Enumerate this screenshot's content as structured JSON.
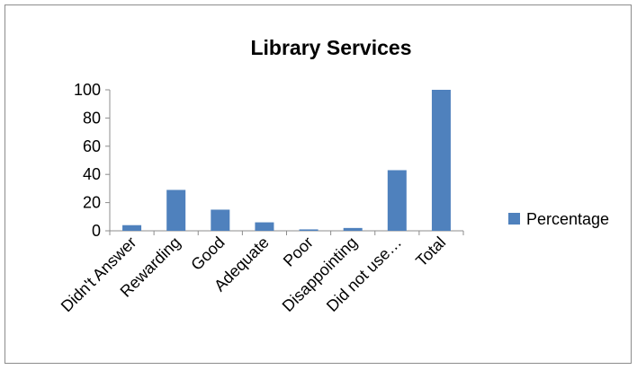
{
  "chart_data": {
    "type": "bar",
    "title": "Library Services",
    "xlabel": "",
    "ylabel": "",
    "categories": [
      "Didn't Answer",
      "Rewarding",
      "Good",
      "Adequate",
      "Poor",
      "Disappointing",
      "Did not use…",
      "Total"
    ],
    "series": [
      {
        "name": "Percentage",
        "values": [
          4,
          29,
          15,
          6,
          1,
          2,
          43,
          100
        ],
        "color": "#4f81bd"
      }
    ],
    "yticks": [
      0,
      20,
      40,
      60,
      80,
      100
    ],
    "ylim": [
      0,
      100
    ],
    "grid": false,
    "legend": "right"
  }
}
